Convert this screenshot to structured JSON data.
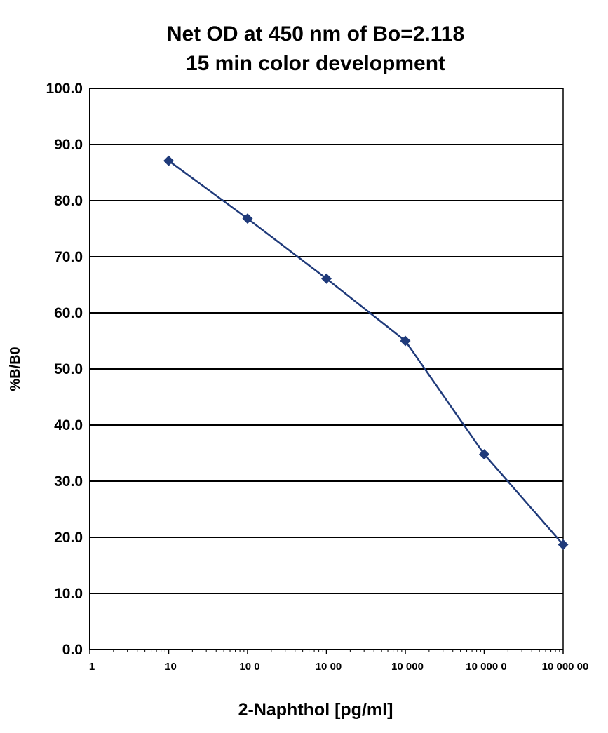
{
  "chart_data": {
    "type": "line",
    "title": [
      "Net OD at 450 nm of Bo=2.118",
      "15 min color development"
    ],
    "xlabel": "2-Naphthol [pg/ml]",
    "ylabel": "%B/B0",
    "x_scale": "log",
    "xlim": [
      1,
      1000000
    ],
    "ylim": [
      0,
      100
    ],
    "x_ticks": [
      1,
      10,
      100,
      1000,
      10000,
      100000,
      1000000
    ],
    "x_tick_labels": [
      "1",
      "10",
      "10 0",
      "10 00",
      "10 000",
      "10 000 0",
      "10 000 00"
    ],
    "y_ticks": [
      0,
      10,
      20,
      30,
      40,
      50,
      60,
      70,
      80,
      90,
      100
    ],
    "y_tick_labels": [
      "0.0",
      "10.0",
      "20.0",
      "30.0",
      "40.0",
      "50.0",
      "60.0",
      "70.0",
      "80.0",
      "90.0",
      "100.0"
    ],
    "grid": "horizontal",
    "legend": "none",
    "series": [
      {
        "x": [
          10,
          100,
          1000,
          10000,
          100000,
          1000000
        ],
        "y": [
          87.1,
          76.8,
          66.1,
          55.0,
          34.8,
          18.7
        ]
      }
    ],
    "colors": {
      "series": "#1f3a7a",
      "grid": "#000000",
      "text": "#000000"
    }
  }
}
